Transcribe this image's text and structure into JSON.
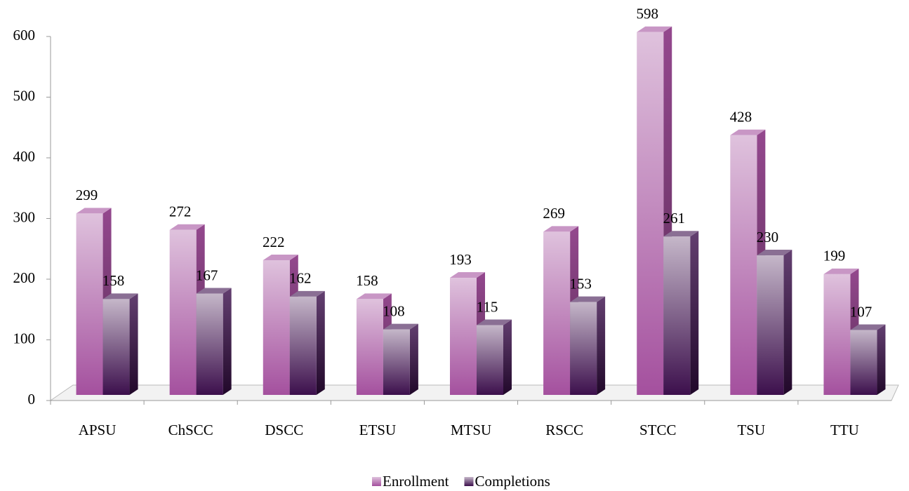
{
  "chart_data": {
    "type": "bar3d",
    "categories": [
      "APSU",
      "ChSCC",
      "DSCC",
      "ETSU",
      "MTSU",
      "RSCC",
      "STCC",
      "TSU",
      "TTU"
    ],
    "series": [
      {
        "name": "Enrollment",
        "color": "#a4509e",
        "values": [
          299,
          272,
          222,
          158,
          193,
          269,
          598,
          428,
          199
        ]
      },
      {
        "name": "Completions",
        "color": "#3c0f4c",
        "values": [
          158,
          167,
          162,
          108,
          115,
          153,
          261,
          230,
          107
        ]
      }
    ],
    "ylim": [
      0,
      600
    ],
    "yticks": [
      0,
      100,
      200,
      300,
      400,
      500,
      600
    ],
    "grid": false,
    "legend": "bottom"
  }
}
